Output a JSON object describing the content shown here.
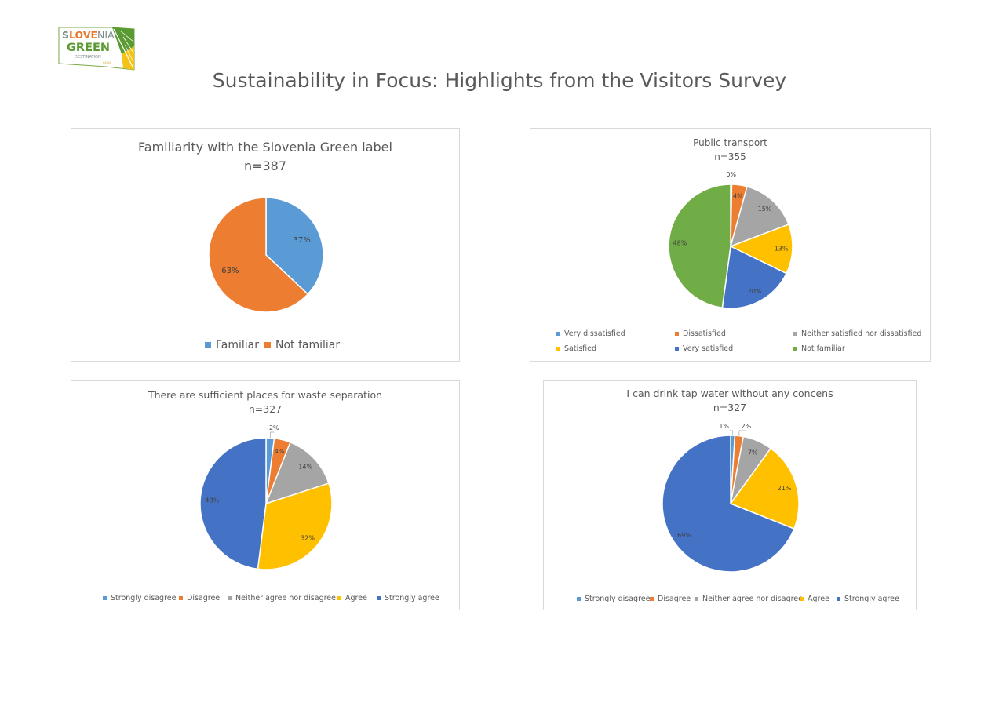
{
  "page": {
    "title": "Sustainability in Focus: Highlights from the Visitors Survey",
    "logo": {
      "line1_a": "S",
      "line1_b": "LOVE",
      "line1_c": "NIA",
      "line2": "GREEN",
      "line3": "DESTINATION",
      "line4": "GOLD",
      "colors": {
        "slo": "#7b8a8b",
        "love": "#e8782a",
        "green": "#5a9a32",
        "yellow": "#f4c316"
      }
    }
  },
  "chart_data": [
    {
      "type": "pie",
      "title": "Familiarity with the Slovenia Green label",
      "subtitle": "n=387",
      "categories": [
        "Familiar",
        "Not familiar"
      ],
      "values": [
        37,
        63
      ],
      "labels": [
        "37%",
        "63%"
      ],
      "colors": [
        "#5b9bd5",
        "#ed7d31"
      ],
      "legend": "bottom"
    },
    {
      "type": "pie",
      "title": "Public transport",
      "subtitle": "n=355",
      "categories": [
        "Very dissatisfied",
        "Dissatisfied",
        "Neither satisfied nor dissatisfied",
        "Satisfied",
        "Very satisfied",
        "Not familiar"
      ],
      "values": [
        0.3,
        4,
        15,
        13,
        20,
        48
      ],
      "labels": [
        "0%",
        "4%",
        "15%",
        "13%",
        "20%",
        "48%"
      ],
      "colors": [
        "#5b9bd5",
        "#ed7d31",
        "#a5a5a5",
        "#ffc000",
        "#4472c4",
        "#70ad47"
      ],
      "legend": "bottom"
    },
    {
      "type": "pie",
      "title": "There are sufficient places for waste separation",
      "subtitle": "n=327",
      "categories": [
        "Strongly disagree",
        "Disagree",
        "Neither agree nor disagree",
        "Agree",
        "Strongly agree"
      ],
      "values": [
        2,
        4,
        14,
        32,
        48
      ],
      "labels": [
        "2%",
        "4%",
        "14%",
        "32%",
        "48%"
      ],
      "colors": [
        "#5b9bd5",
        "#ed7d31",
        "#a5a5a5",
        "#ffc000",
        "#4472c4"
      ],
      "legend": "bottom"
    },
    {
      "type": "pie",
      "title": "I can drink tap water without any concens",
      "subtitle": "n=327",
      "categories": [
        "Strongly disagree",
        "Disagree",
        "Neither agree nor disagree",
        "Agree",
        "Strongly agree"
      ],
      "values": [
        1,
        2,
        7,
        21,
        69
      ],
      "labels": [
        "1%",
        "2%",
        "7%",
        "21%",
        "69%"
      ],
      "colors": [
        "#5b9bd5",
        "#ed7d31",
        "#a5a5a5",
        "#ffc000",
        "#4472c4"
      ],
      "legend": "bottom"
    }
  ]
}
